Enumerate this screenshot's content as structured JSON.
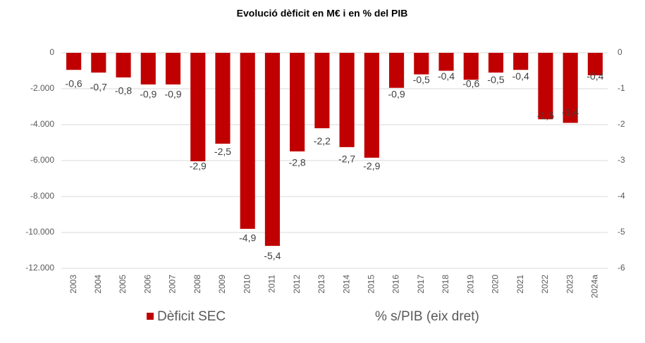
{
  "chart_data": {
    "type": "bar",
    "title": "Evolució dèficit en M€ i en % del PIB",
    "categories": [
      "2003",
      "2004",
      "2005",
      "2006",
      "2007",
      "2008",
      "2009",
      "2010",
      "2011",
      "2012",
      "2013",
      "2014",
      "2015",
      "2016",
      "2017",
      "2018",
      "2019",
      "2020",
      "2021",
      "2022",
      "2023",
      "2024a"
    ],
    "series": [
      {
        "name": "Dèficit SEC",
        "color": "#c00000",
        "values": [
          -950,
          -1100,
          -1370,
          -1760,
          -1760,
          -6040,
          -5060,
          -9800,
          -10750,
          -5490,
          -4200,
          -5250,
          -5840,
          -1950,
          -1200,
          -1000,
          -1500,
          -1100,
          -950,
          -3700,
          -3900,
          -1250
        ]
      },
      {
        "name": "% s/PIB (eix dret)",
        "axis": "y2",
        "values": [
          -0.6,
          -0.7,
          -0.8,
          -0.9,
          -0.9,
          -2.9,
          -2.5,
          -4.9,
          -5.4,
          -2.8,
          -2.2,
          -2.7,
          -2.9,
          -0.9,
          -0.5,
          -0.4,
          -0.6,
          -0.5,
          -0.4,
          -1.5,
          -1.4,
          -0.4
        ],
        "value_labels": [
          "-0,6",
          "-0,7",
          "-0,8",
          "-0,9",
          "-0,9",
          "-2,9",
          "-2,5",
          "-4,9",
          "-5,4",
          "-2,8",
          "-2,2",
          "-2,7",
          "-2,9",
          "-0,9",
          "-0,5",
          "-0,4",
          "-0,6",
          "-0,5",
          "-0,4",
          "-1,5",
          "-1,4",
          "-0,4"
        ]
      }
    ],
    "ylim": [
      -12000,
      0
    ],
    "yticks": [
      {
        "value": -12000,
        "label": "-12.000"
      },
      {
        "value": -10000,
        "label": "-10.000"
      },
      {
        "value": -8000,
        "label": "-8.000"
      },
      {
        "value": -6000,
        "label": "-6.000"
      },
      {
        "value": -4000,
        "label": "-4.000"
      },
      {
        "value": -2000,
        "label": "-2.000"
      },
      0
    ],
    "y2lim": [
      -6,
      0
    ],
    "y2ticks": [
      -6,
      -5,
      -4,
      -3,
      -2,
      -1,
      0
    ],
    "grid": true
  }
}
